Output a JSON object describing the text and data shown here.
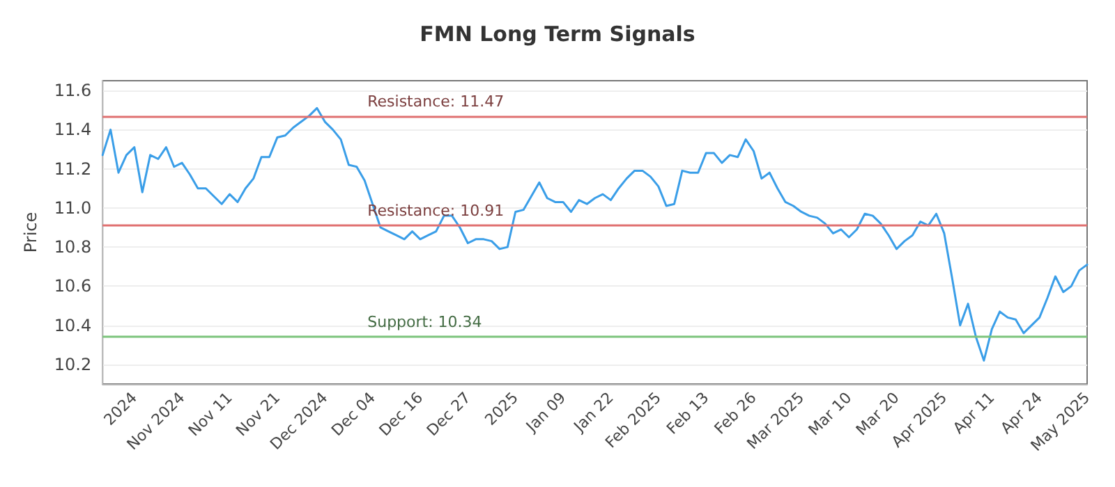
{
  "chart_data": {
    "type": "line",
    "title": "FMN Long Term Signals",
    "ylabel": "Price",
    "categories": [
      null,
      null,
      null,
      null,
      "2024",
      null,
      null,
      null,
      null,
      null,
      "Nov 2024",
      null,
      null,
      null,
      null,
      null,
      "Nov 11",
      null,
      null,
      null,
      null,
      null,
      "Nov 21",
      null,
      null,
      null,
      null,
      null,
      "Dec 2024",
      null,
      null,
      null,
      null,
      null,
      "Dec 04",
      null,
      null,
      null,
      null,
      null,
      "Dec 16",
      null,
      null,
      null,
      null,
      null,
      "Dec 27",
      null,
      null,
      null,
      null,
      null,
      "2025",
      null,
      null,
      null,
      null,
      null,
      "Jan 09",
      null,
      null,
      null,
      null,
      null,
      "Jan 22",
      null,
      null,
      null,
      null,
      null,
      "Feb 2025",
      null,
      null,
      null,
      null,
      null,
      "Feb 13",
      null,
      null,
      null,
      null,
      null,
      "Feb 26",
      null,
      null,
      null,
      null,
      null,
      "Mar 2025",
      null,
      null,
      null,
      null,
      null,
      "Mar 10",
      null,
      null,
      null,
      null,
      null,
      "Mar 20",
      null,
      null,
      null,
      null,
      null,
      "Apr 2025",
      null,
      null,
      null,
      null,
      null,
      "Apr 11",
      null,
      null,
      null,
      null,
      null,
      "Apr 24",
      null,
      null,
      null,
      null,
      null,
      "May 2025"
    ],
    "series": [
      {
        "color": "#3a9ee8",
        "values": [
          11.27,
          11.4,
          11.18,
          11.27,
          11.31,
          11.08,
          11.27,
          11.25,
          11.31,
          11.21,
          11.23,
          11.17,
          11.1,
          11.1,
          11.06,
          11.02,
          11.07,
          11.03,
          11.1,
          11.15,
          11.26,
          11.26,
          11.36,
          11.37,
          11.41,
          11.44,
          11.47,
          11.51,
          11.44,
          11.4,
          11.35,
          11.22,
          11.21,
          11.14,
          11.02,
          10.9,
          10.88,
          10.86,
          10.84,
          10.88,
          10.84,
          10.86,
          10.88,
          10.96,
          10.96,
          10.9,
          10.82,
          10.84,
          10.84,
          10.83,
          10.79,
          10.8,
          10.98,
          10.99,
          11.06,
          11.13,
          11.05,
          11.03,
          11.03,
          10.98,
          11.04,
          11.02,
          11.05,
          11.07,
          11.04,
          11.1,
          11.15,
          11.19,
          11.19,
          11.16,
          11.11,
          11.01,
          11.02,
          11.19,
          11.18,
          11.18,
          11.28,
          11.28,
          11.23,
          11.27,
          11.26,
          11.35,
          11.29,
          11.15,
          11.18,
          11.1,
          11.03,
          11.01,
          10.98,
          10.96,
          10.95,
          10.92,
          10.87,
          10.89,
          10.85,
          10.89,
          10.97,
          10.96,
          10.92,
          10.86,
          10.79,
          10.83,
          10.86,
          10.93,
          10.91,
          10.97,
          10.87,
          10.64,
          10.4,
          10.51,
          10.34,
          10.22,
          10.38,
          10.47,
          10.44,
          10.43,
          10.36,
          10.4,
          10.44,
          10.54,
          10.65,
          10.57,
          10.6,
          10.68,
          10.71
        ]
      }
    ],
    "ylim": [
      10.1,
      11.65
    ],
    "yticks": [
      10.2,
      10.4,
      10.6,
      10.8,
      {
        "value": 11,
        "label": "11.0"
      },
      11.2,
      11.4,
      11.6
    ],
    "grid": "y",
    "marker": "none",
    "line_style": "solid",
    "ref_lines": [
      {
        "axis": "y",
        "value": 11.47,
        "label": "Resistance: 11.47",
        "color": "#e07070"
      },
      {
        "axis": "y",
        "value": 10.91,
        "label": "Resistance: 10.91",
        "color": "#e07070"
      },
      {
        "axis": "y",
        "value": 10.34,
        "label": "Support: 10.34",
        "color": "#7cc47c"
      }
    ]
  }
}
